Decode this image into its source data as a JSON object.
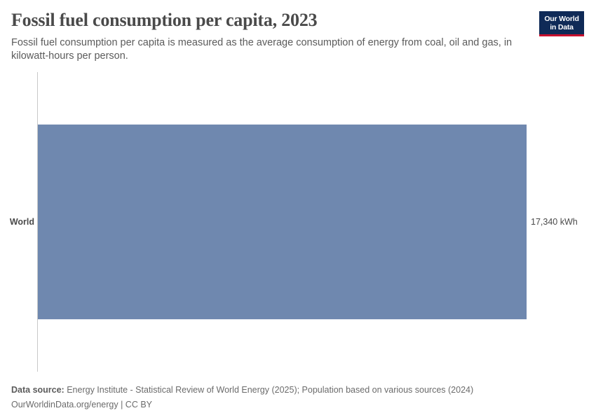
{
  "header": {
    "title": "Fossil fuel consumption per capita, 2023",
    "subtitle": "Fossil fuel consumption per capita is measured as the average consumption of energy from coal, oil and gas, in kilowatt-hours per person."
  },
  "logo": {
    "line1": "Our World",
    "line2": "in Data"
  },
  "chart_data": {
    "type": "bar",
    "orientation": "horizontal",
    "title": "Fossil fuel consumption per capita, 2023",
    "categories": [
      "World"
    ],
    "values": [
      17340
    ],
    "value_labels": [
      "17,340 kWh"
    ],
    "unit": "kWh",
    "xlim": [
      0,
      17340
    ],
    "grid": false,
    "bar_color": "#6f88af"
  },
  "footer": {
    "source_label": "Data source:",
    "source_text": "Energy Institute - Statistical Review of World Energy (2025); Population based on various sources (2024)",
    "link_text": "OurWorldinData.org/energy | CC BY"
  },
  "colors": {
    "bar": "#6f88af",
    "logo_bg": "#0f2a57",
    "logo_accent": "#c8102e"
  }
}
